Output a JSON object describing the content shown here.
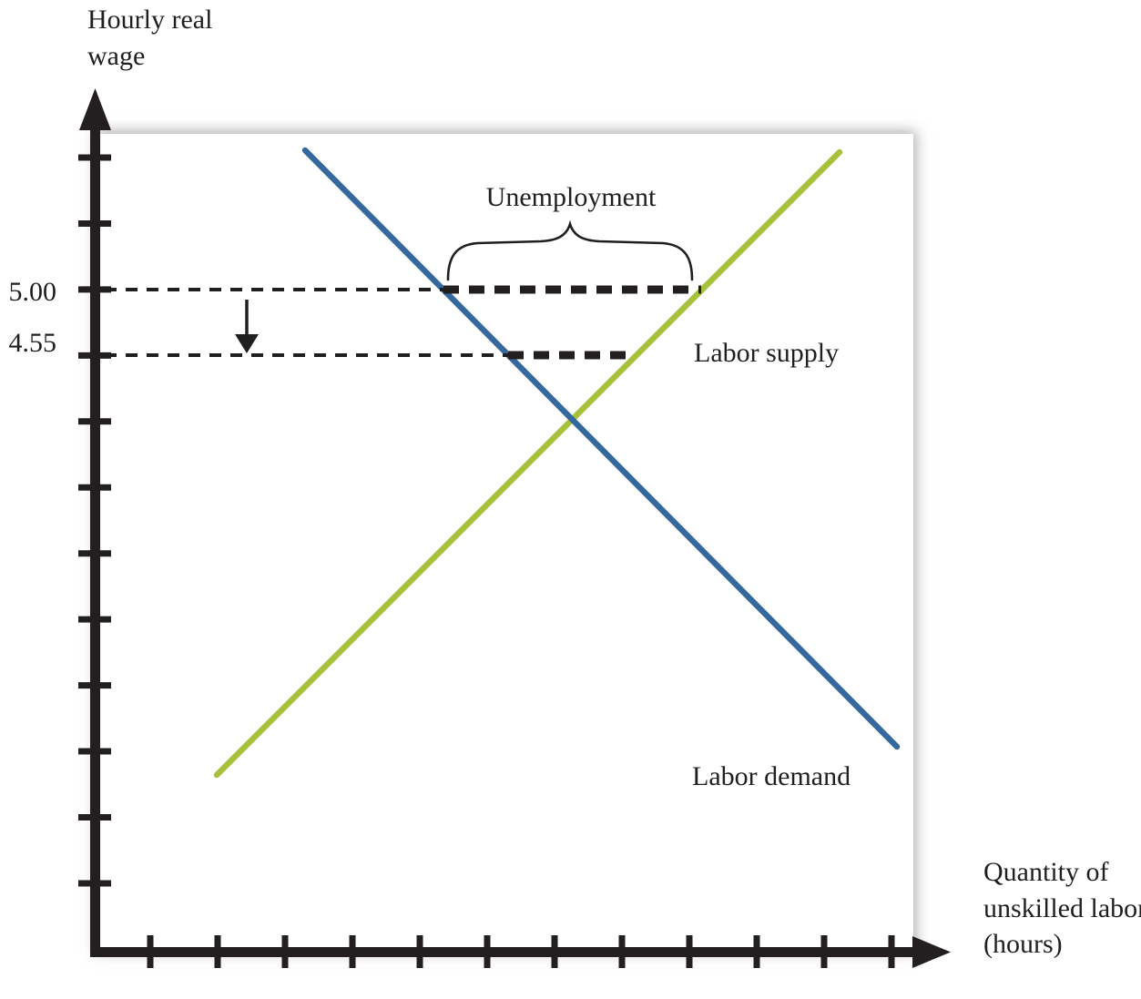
{
  "figure": {
    "y_axis_title": "Hourly real wage",
    "x_axis_title": "Quantity of unskilled labor (hours)",
    "wage_floor_label": "5.00",
    "reduced_wage_label": "4.55",
    "unemployment_label": "Unemployment",
    "supply_label": "Labor supply",
    "demand_label": "Labor demand",
    "colors": {
      "demand_line": "#35689C",
      "supply_line": "#A6C13C",
      "axis": "#231F20",
      "text": "#1F1F1F"
    }
  },
  "chart_data": {
    "type": "line",
    "title": "",
    "xlabel": "Quantity of unskilled labor (hours)",
    "ylabel": "Hourly real wage",
    "grid": false,
    "legend": "none (labels placed next to lines)",
    "x_axis": {
      "tick_count": 12,
      "tick_labels_visible": false
    },
    "y_axis": {
      "tick_count": 12,
      "labeled_ticks": [
        {
          "tick_index_from_top": 3,
          "label": "5.00",
          "value": 5.0
        },
        {
          "tick_index_from_top": 4,
          "label": "4.55",
          "value": 4.55
        }
      ],
      "estimated_value_per_tick": 0.45
    },
    "series": [
      {
        "name": "Labor demand",
        "color": "#35689C",
        "shape": "straight-line",
        "slope": "downward",
        "points": [
          {
            "quantity_ticks": 3.3,
            "wage": 5.94
          },
          {
            "quantity_ticks": 12.1,
            "wage": 1.88
          }
        ]
      },
      {
        "name": "Labor supply",
        "color": "#A6C13C",
        "shape": "straight-line",
        "slope": "upward",
        "points": [
          {
            "quantity_ticks": 2.0,
            "wage": 1.67
          },
          {
            "quantity_ticks": 11.2,
            "wage": 5.94
          }
        ]
      }
    ],
    "equilibrium": {
      "quantity_ticks": 7.3,
      "wage": 4.1
    },
    "annotations": [
      {
        "kind": "horizontal-dashed-line",
        "wage": 5.0,
        "from_y_axis": true,
        "demand_quantity_ticks": 5.4,
        "supply_quantity_ticks": 9.2
      },
      {
        "kind": "thick-dashed-segment",
        "at_wage": 5.0,
        "spans": "demand to supply",
        "gap_quantity_ticks": 3.8,
        "labeled_by_brace": "Unemployment"
      },
      {
        "kind": "horizontal-dashed-line",
        "wage": 4.55,
        "from_y_axis": true,
        "demand_quantity_ticks": 6.3,
        "supply_quantity_ticks": 8.2
      },
      {
        "kind": "thick-dashed-segment",
        "at_wage": 4.55,
        "spans": "demand to supply",
        "gap_quantity_ticks": 1.9
      },
      {
        "kind": "down-arrow",
        "from_wage": 5.0,
        "to_wage": 4.55
      }
    ]
  }
}
